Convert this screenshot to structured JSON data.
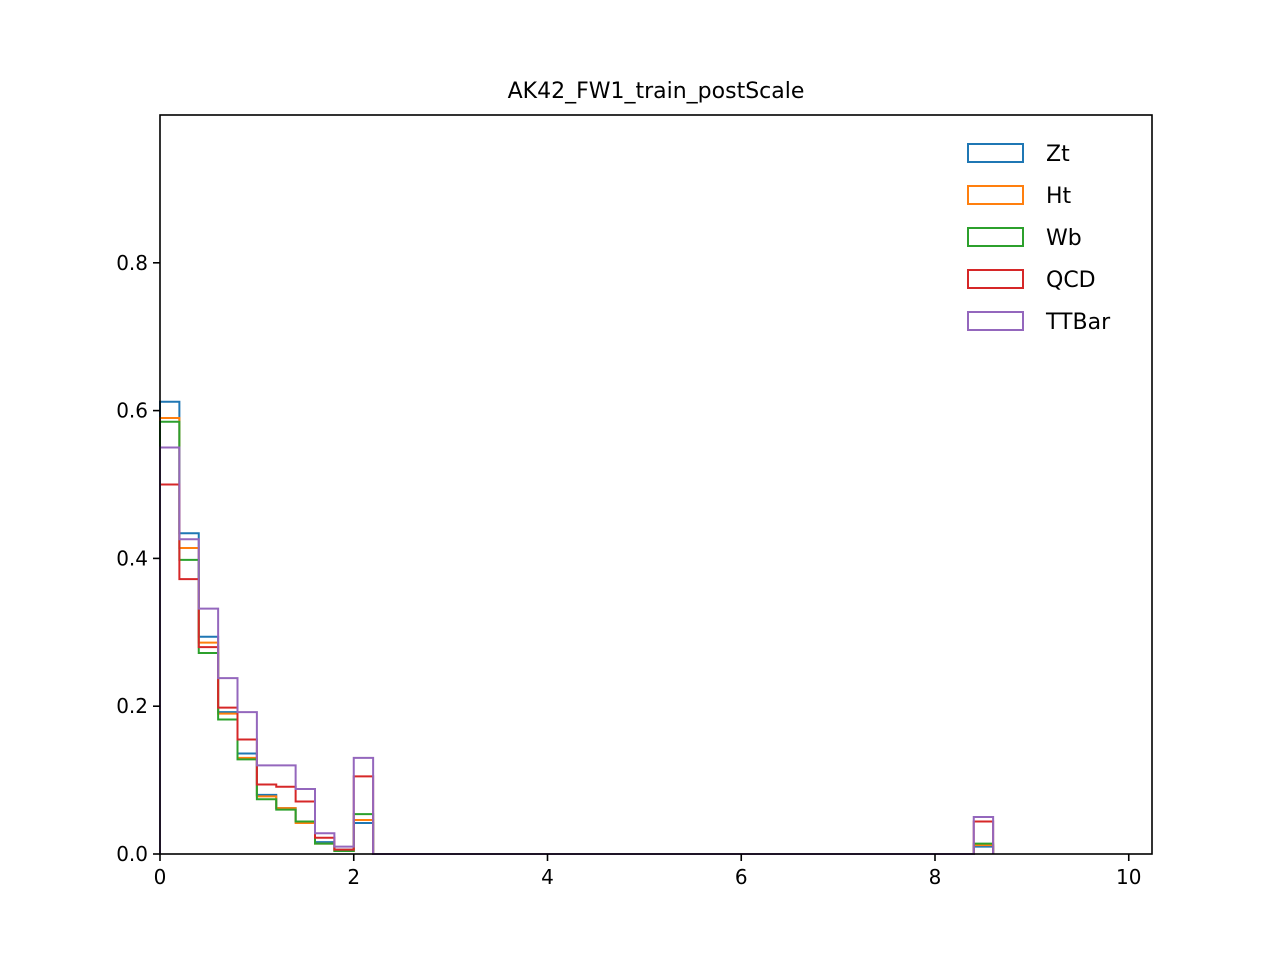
{
  "chart_data": {
    "type": "histogram",
    "title": "AK42_FW1_train_postScale",
    "xlabel": "",
    "ylabel": "",
    "xlim": [
      0,
      10.24
    ],
    "ylim": [
      0,
      1.0
    ],
    "x_ticks": [
      0,
      2,
      4,
      6,
      8,
      10
    ],
    "x_tick_labels": [
      "0",
      "2",
      "4",
      "6",
      "8",
      "10"
    ],
    "y_ticks": [
      0.0,
      0.2,
      0.4,
      0.6,
      0.8
    ],
    "y_tick_labels": [
      "0.0",
      "0.2",
      "0.4",
      "0.6",
      "0.8"
    ],
    "grid": false,
    "legend_position": "top-right",
    "histtype": "step",
    "bin_edges": [
      0.0,
      0.2,
      0.4,
      0.6,
      0.8,
      1.0,
      1.2,
      1.4,
      1.6,
      1.8,
      2.0,
      2.2,
      2.4,
      2.6,
      2.8,
      3.0,
      3.2,
      3.4,
      3.6,
      3.8,
      4.0,
      4.2,
      4.4,
      4.6,
      4.8,
      5.0,
      5.2,
      5.4,
      5.6,
      5.8,
      6.0,
      6.2,
      6.4,
      6.6,
      6.8,
      7.0,
      7.2,
      7.4,
      7.6,
      7.8,
      8.0,
      8.2,
      8.4,
      8.6
    ],
    "series": [
      {
        "name": "Zt",
        "color": "#1f77b4",
        "values": [
          0.612,
          0.434,
          0.294,
          0.192,
          0.136,
          0.08,
          0.062,
          0.044,
          0.016,
          0.006,
          0.042,
          0,
          0,
          0,
          0,
          0,
          0,
          0,
          0,
          0,
          0,
          0,
          0,
          0,
          0,
          0,
          0,
          0,
          0,
          0,
          0,
          0,
          0,
          0,
          0,
          0,
          0,
          0,
          0,
          0,
          0,
          0,
          0.01
        ]
      },
      {
        "name": "Ht",
        "color": "#ff7f0e",
        "values": [
          0.59,
          0.414,
          0.286,
          0.19,
          0.13,
          0.078,
          0.062,
          0.042,
          0.014,
          0.004,
          0.046,
          0,
          0,
          0,
          0,
          0,
          0,
          0,
          0,
          0,
          0,
          0,
          0,
          0,
          0,
          0,
          0,
          0,
          0,
          0,
          0,
          0,
          0,
          0,
          0,
          0,
          0,
          0,
          0,
          0,
          0,
          0,
          0.012
        ]
      },
      {
        "name": "Wb",
        "color": "#2ca02c",
        "values": [
          0.585,
          0.398,
          0.272,
          0.182,
          0.128,
          0.074,
          0.06,
          0.044,
          0.014,
          0.004,
          0.054,
          0,
          0,
          0,
          0,
          0,
          0,
          0,
          0,
          0,
          0,
          0,
          0,
          0,
          0,
          0,
          0,
          0,
          0,
          0,
          0,
          0,
          0,
          0,
          0,
          0,
          0,
          0,
          0,
          0,
          0,
          0,
          0.014
        ]
      },
      {
        "name": "QCD",
        "color": "#d62728",
        "values": [
          0.5,
          0.372,
          0.28,
          0.198,
          0.155,
          0.094,
          0.091,
          0.071,
          0.022,
          0.006,
          0.105,
          0,
          0,
          0,
          0,
          0,
          0,
          0,
          0,
          0,
          0,
          0,
          0,
          0,
          0,
          0,
          0,
          0,
          0,
          0,
          0,
          0,
          0,
          0,
          0,
          0,
          0,
          0,
          0,
          0,
          0,
          0,
          0.044
        ]
      },
      {
        "name": "TTBar",
        "color": "#9467bd",
        "values": [
          0.55,
          0.426,
          0.332,
          0.238,
          0.192,
          0.12,
          0.12,
          0.088,
          0.028,
          0.01,
          0.13,
          0,
          0,
          0,
          0,
          0,
          0,
          0,
          0,
          0,
          0,
          0,
          0,
          0,
          0,
          0,
          0,
          0,
          0,
          0,
          0,
          0,
          0,
          0,
          0,
          0,
          0,
          0,
          0,
          0,
          0,
          0,
          0.05
        ]
      }
    ]
  }
}
